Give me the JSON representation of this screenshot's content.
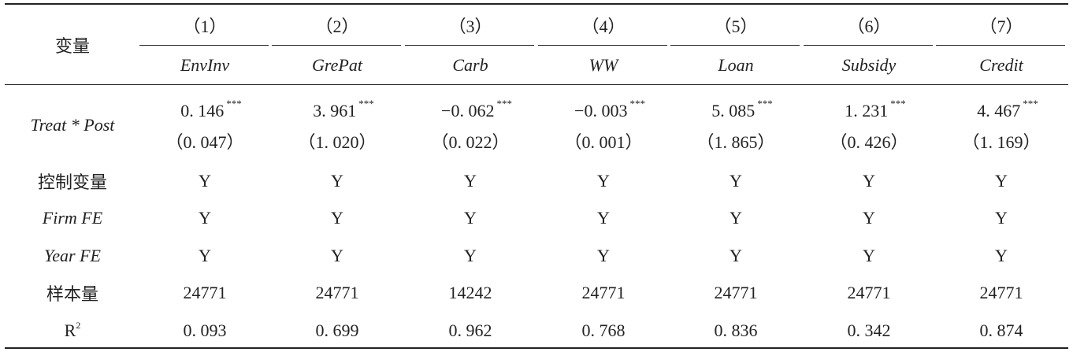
{
  "table": {
    "header": {
      "row_label": "变量",
      "columns": [
        {
          "number": "（1）",
          "name": "EnvInv"
        },
        {
          "number": "（2）",
          "name": "GrePat"
        },
        {
          "number": "（3）",
          "name": "Carb"
        },
        {
          "number": "（4）",
          "name": "WW"
        },
        {
          "number": "（5）",
          "name": "Loan"
        },
        {
          "number": "（6）",
          "name": "Subsidy"
        },
        {
          "number": "（7）",
          "name": "Credit"
        }
      ]
    },
    "coef_row": {
      "label": "Treat * Post",
      "cells": [
        {
          "coef": "0. 146",
          "stars": "***",
          "se": "（0. 047）"
        },
        {
          "coef": "3. 961",
          "stars": "***",
          "se": "（1. 020）"
        },
        {
          "coef": "−0. 062",
          "stars": "***",
          "se": "（0. 022）"
        },
        {
          "coef": "−0. 003",
          "stars": "***",
          "se": "（0. 001）"
        },
        {
          "coef": "5. 085",
          "stars": "***",
          "se": "（1. 865）"
        },
        {
          "coef": "1. 231",
          "stars": "***",
          "se": "（0. 426）"
        },
        {
          "coef": "4. 467",
          "stars": "***",
          "se": "（1. 169）"
        }
      ]
    },
    "rows": [
      {
        "label": "控制变量",
        "cells": [
          "Y",
          "Y",
          "Y",
          "Y",
          "Y",
          "Y",
          "Y"
        ]
      },
      {
        "label": "Firm FE",
        "italic": true,
        "cells": [
          "Y",
          "Y",
          "Y",
          "Y",
          "Y",
          "Y",
          "Y"
        ]
      },
      {
        "label": "Year FE",
        "italic": true,
        "cells": [
          "Y",
          "Y",
          "Y",
          "Y",
          "Y",
          "Y",
          "Y"
        ]
      },
      {
        "label": "样本量",
        "cells": [
          "24771",
          "24771",
          "14242",
          "24771",
          "24771",
          "24771",
          "24771"
        ]
      },
      {
        "label": "R",
        "label_sup": "2",
        "cells": [
          "0. 093",
          "0. 699",
          "0. 962",
          "0. 768",
          "0. 836",
          "0. 342",
          "0. 874"
        ]
      }
    ]
  }
}
